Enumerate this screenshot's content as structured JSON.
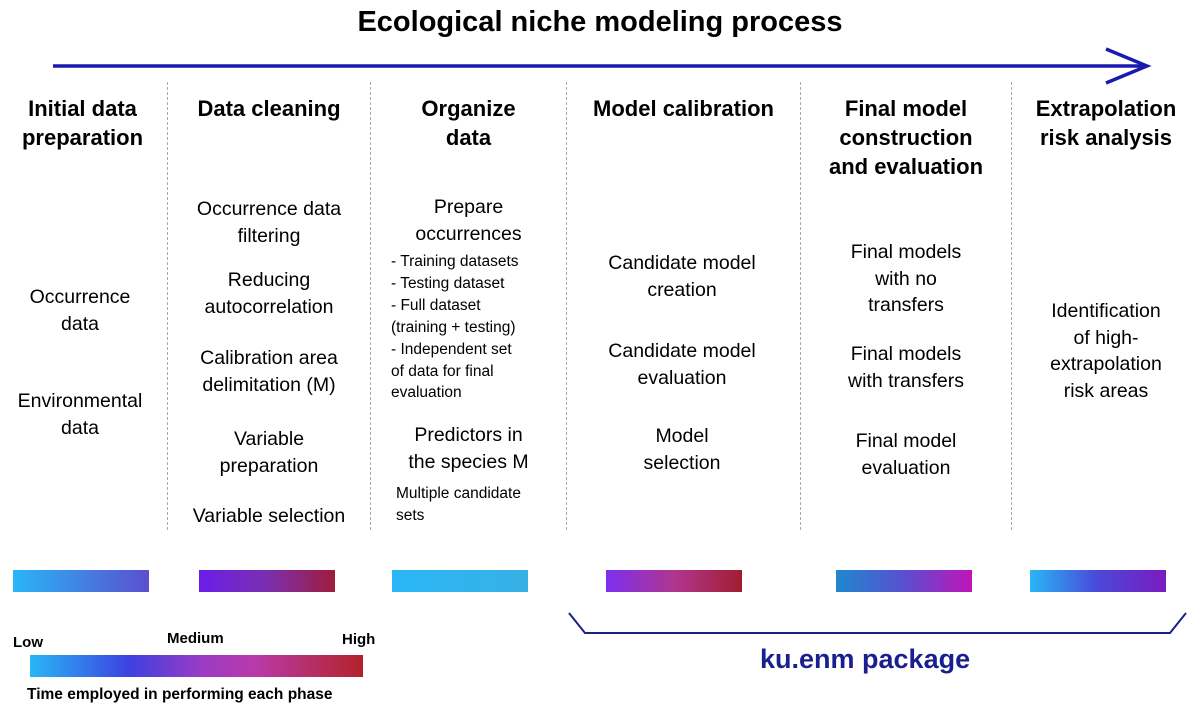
{
  "title": "Ecological niche modeling process",
  "colors": {
    "arrow": "#1a1ab0",
    "package": "#1a1f8f"
  },
  "columns": [
    {
      "header": "Initial data\npreparation",
      "items": [
        "Occurrence\ndata",
        "Environmental\ndata"
      ]
    },
    {
      "header": "Data cleaning",
      "items": [
        "Occurrence data\nfiltering",
        "Reducing\nautocorrelation",
        "Calibration area\ndelimitation (M)",
        "Variable\npreparation",
        "Variable selection"
      ]
    },
    {
      "header": "Organize\ndata",
      "items": [
        "Prepare\noccurrences",
        "Predictors in\nthe species M"
      ],
      "sub_items": [
        "- Training datasets",
        "- Testing dataset",
        "- Full dataset\n(training + testing)",
        "- Independent set\nof data for final\nevaluation"
      ],
      "note": "Multiple candidate\nsets"
    },
    {
      "header": "Model calibration",
      "items": [
        "Candidate model\ncreation",
        "Candidate model\nevaluation",
        "Model\nselection"
      ]
    },
    {
      "header": "Final model\nconstruction\nand evaluation",
      "items": [
        "Final models\nwith no\ntransfers",
        "Final models\nwith transfers",
        "Final model\nevaluation"
      ]
    },
    {
      "header": "Extrapolation\nrisk analysis",
      "items": [
        "Identification\nof high-\nextrapolation\nrisk areas"
      ]
    }
  ],
  "phase_bars": [
    {
      "phase": "Initial data preparation",
      "gradient": [
        "#29b6f6",
        "#5b4fcf"
      ]
    },
    {
      "phase": "Data cleaning",
      "gradient": [
        "#6a1ee8",
        "#7a2fb0",
        "#a01c3c"
      ]
    },
    {
      "phase": "Organize data",
      "gradient": [
        "#29b6f6",
        "#38b0e6"
      ]
    },
    {
      "phase": "Model calibration",
      "gradient": [
        "#7b2ff0",
        "#b0368f",
        "#a11e30"
      ]
    },
    {
      "phase": "Final model construction and evaluation",
      "gradient": [
        "#1e88cf",
        "#5a4fd0",
        "#c014b8"
      ]
    },
    {
      "phase": "Extrapolation risk analysis",
      "gradient": [
        "#29b6f6",
        "#4a48d8",
        "#7a1bbf"
      ]
    }
  ],
  "legend": {
    "low": "Low",
    "medium": "Medium",
    "high": "High",
    "caption": "Time employed in performing each phase"
  },
  "package_label": "ku.enm package"
}
